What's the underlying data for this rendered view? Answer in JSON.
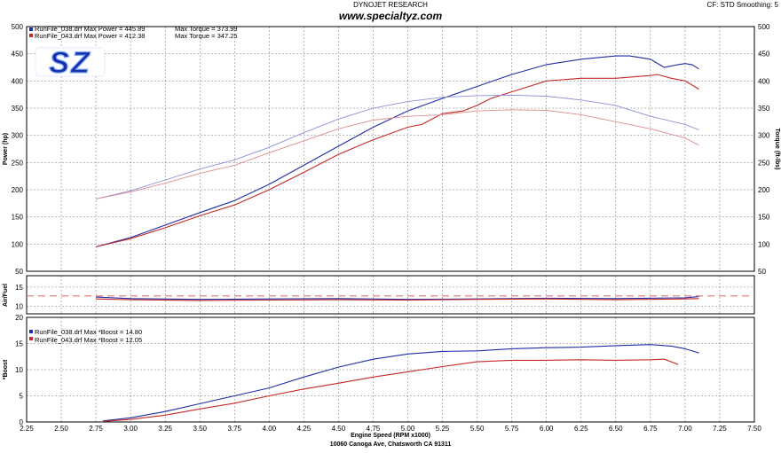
{
  "header": {
    "center_title": "DYNOJET RESEARCH",
    "website": "www.specialtyz.com",
    "right_info": "CF: STD   Smoothing: 5",
    "footer_address": "10060 Canoga Ave, Chatsworth CA 91311"
  },
  "logo": {
    "text": "SZ",
    "colors": [
      "#1a2fa8",
      "#7fb0ff"
    ]
  },
  "colors": {
    "run038": "#1f2ea3",
    "run043": "#c62828",
    "run038_torque": "#8a90d8",
    "run043_torque": "#e08d8d",
    "target_afr": "#e57373"
  },
  "chart_data": [
    {
      "type": "line",
      "panel": "power-torque",
      "ylabel": "Power (hp)",
      "y2label": "Torque (ft-lbs)",
      "ylim": [
        50,
        500
      ],
      "y_ticks": [
        "50",
        "100",
        "150",
        "200",
        "250",
        "300",
        "350",
        "400",
        "450",
        "500"
      ],
      "legend": [
        {
          "label": "RunFile_038.drf Max Power = 445.89",
          "extra": "Max Torque = 373.99",
          "color": "#1f2ea3"
        },
        {
          "label": "RunFile_043.drf Max Power = 412.38",
          "extra": "Max Torque = 347.25",
          "color": "#c62828"
        }
      ],
      "series": [
        {
          "name": "RunFile_038.drf",
          "kind": "power",
          "color": "#1f2ea3",
          "x": [
            2.75,
            3.0,
            3.25,
            3.5,
            3.75,
            4.0,
            4.25,
            4.5,
            4.75,
            5.0,
            5.25,
            5.5,
            5.75,
            6.0,
            6.25,
            6.5,
            6.6,
            6.75,
            6.85,
            6.95,
            7.0,
            7.05,
            7.1
          ],
          "y": [
            95,
            112,
            135,
            158,
            180,
            210,
            245,
            280,
            315,
            345,
            368,
            390,
            412,
            430,
            440,
            446,
            446,
            440,
            425,
            430,
            432,
            430,
            422
          ]
        },
        {
          "name": "RunFile_043.drf",
          "kind": "power",
          "color": "#c62828",
          "x": [
            2.75,
            3.0,
            3.25,
            3.5,
            3.75,
            4.0,
            4.25,
            4.5,
            4.75,
            5.0,
            5.1,
            5.25,
            5.4,
            5.5,
            5.6,
            5.75,
            6.0,
            6.25,
            6.5,
            6.75,
            6.8,
            6.9,
            7.0,
            7.1
          ],
          "y": [
            95,
            110,
            130,
            152,
            172,
            200,
            232,
            265,
            292,
            315,
            320,
            340,
            345,
            355,
            368,
            380,
            400,
            405,
            405,
            410,
            412,
            405,
            400,
            385
          ]
        },
        {
          "name": "RunFile_038.drf",
          "kind": "torque",
          "color": "#8a90d8",
          "x": [
            2.75,
            3.0,
            3.25,
            3.5,
            3.75,
            4.0,
            4.25,
            4.5,
            4.75,
            5.0,
            5.25,
            5.5,
            5.75,
            6.0,
            6.25,
            6.5,
            6.75,
            7.0,
            7.1
          ],
          "y": [
            183,
            198,
            218,
            238,
            255,
            278,
            305,
            330,
            350,
            362,
            370,
            373,
            374,
            372,
            365,
            355,
            335,
            320,
            310
          ]
        },
        {
          "name": "RunFile_043.drf",
          "kind": "torque",
          "color": "#e08d8d",
          "x": [
            2.75,
            3.0,
            3.25,
            3.5,
            3.75,
            4.0,
            4.25,
            4.5,
            4.75,
            5.0,
            5.25,
            5.5,
            5.75,
            6.0,
            6.25,
            6.5,
            6.75,
            7.0,
            7.1
          ],
          "y": [
            183,
            196,
            212,
            230,
            245,
            268,
            290,
            312,
            328,
            335,
            338,
            345,
            347,
            346,
            338,
            325,
            312,
            295,
            282
          ]
        }
      ]
    },
    {
      "type": "line",
      "panel": "air-fuel",
      "ylabel": "Air/Fuel",
      "ylim": [
        8,
        18
      ],
      "y_ticks": [
        "10",
        "15"
      ],
      "series": [
        {
          "name": "RunFile_038.drf",
          "color": "#1f2ea3",
          "x": [
            2.75,
            3.0,
            3.5,
            4.0,
            4.5,
            5.0,
            5.5,
            6.0,
            6.5,
            7.0,
            7.1
          ],
          "y": [
            12.4,
            12.0,
            11.8,
            11.9,
            12.0,
            11.8,
            11.9,
            12.1,
            12.0,
            12.2,
            12.5
          ]
        },
        {
          "name": "RunFile_043.drf",
          "color": "#c62828",
          "x": [
            2.75,
            3.0,
            3.5,
            4.0,
            4.5,
            5.0,
            5.5,
            6.0,
            6.5,
            7.0,
            7.1
          ],
          "y": [
            11.9,
            11.7,
            11.5,
            11.6,
            11.7,
            11.6,
            11.8,
            11.9,
            11.7,
            11.9,
            12.0
          ]
        },
        {
          "name": "target",
          "color": "#e57373",
          "dashed": true,
          "x": [
            2.25,
            7.5
          ],
          "y": [
            12.7,
            12.7
          ]
        }
      ]
    },
    {
      "type": "line",
      "panel": "boost",
      "ylabel": "*Boost",
      "xlabel": "Engine Speed (RPM x1000)",
      "ylim": [
        0,
        20
      ],
      "y_ticks": [
        "0",
        "5",
        "10",
        "15",
        "20"
      ],
      "x_ticks": [
        "2.25",
        "2.50",
        "2.75",
        "3.00",
        "3.25",
        "3.50",
        "3.75",
        "4.00",
        "4.25",
        "4.50",
        "4.75",
        "5.00",
        "5.25",
        "5.50",
        "5.75",
        "6.00",
        "6.25",
        "6.50",
        "6.75",
        "7.00",
        "7.25",
        "7.50"
      ],
      "xlim": [
        2.25,
        7.5
      ],
      "legend": [
        {
          "label": "RunFile_038.drf Max  *Boost = 14.80",
          "color": "#1f2ea3"
        },
        {
          "label": "RunFile_043.drf Max  *Boost = 12.05",
          "color": "#c62828"
        }
      ],
      "series": [
        {
          "name": "RunFile_038.drf",
          "color": "#1f2ea3",
          "x": [
            2.8,
            3.0,
            3.25,
            3.5,
            3.75,
            4.0,
            4.25,
            4.5,
            4.75,
            5.0,
            5.25,
            5.5,
            5.75,
            6.0,
            6.25,
            6.5,
            6.75,
            6.9,
            7.0,
            7.1
          ],
          "y": [
            0.2,
            0.8,
            2.0,
            3.5,
            5.0,
            6.5,
            8.6,
            10.5,
            12.0,
            13.0,
            13.5,
            13.6,
            14.0,
            14.2,
            14.3,
            14.6,
            14.8,
            14.5,
            14.0,
            13.2
          ]
        },
        {
          "name": "RunFile_043.drf",
          "color": "#c62828",
          "x": [
            2.8,
            3.0,
            3.25,
            3.5,
            3.75,
            4.0,
            4.25,
            4.5,
            4.75,
            5.0,
            5.25,
            5.5,
            5.75,
            6.0,
            6.25,
            6.5,
            6.75,
            6.85,
            6.95
          ],
          "y": [
            0.1,
            0.5,
            1.3,
            2.5,
            3.6,
            5.0,
            6.3,
            7.4,
            8.6,
            9.6,
            10.6,
            11.5,
            11.8,
            11.8,
            11.9,
            11.8,
            11.9,
            12.0,
            11.0
          ]
        }
      ]
    }
  ]
}
